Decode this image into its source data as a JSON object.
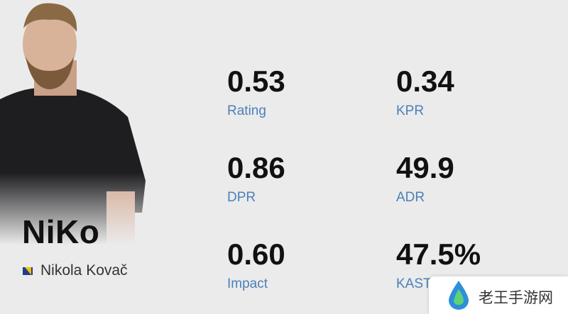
{
  "player": {
    "nickname": "NiKo",
    "full_name": "Nikola Kovač"
  },
  "stats": [
    {
      "value": "0.53",
      "label": "Rating"
    },
    {
      "value": "0.34",
      "label": "KPR"
    },
    {
      "value": "0.86",
      "label": "DPR"
    },
    {
      "value": "49.9",
      "label": "ADR"
    },
    {
      "value": "0.60",
      "label": "Impact"
    },
    {
      "value": "47.5%",
      "label": "KAST"
    }
  ],
  "watermark": {
    "text": "老王手游网"
  }
}
